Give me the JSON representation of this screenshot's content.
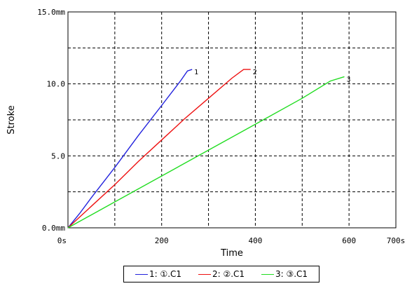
{
  "chart_data": {
    "type": "line",
    "xlabel": "Time",
    "ylabel": "Stroke",
    "xlim": [
      0,
      700
    ],
    "ylim": [
      0,
      15
    ],
    "x_ticks": [
      {
        "value": 0,
        "label": "0s"
      },
      {
        "value": 200,
        "label": "200"
      },
      {
        "value": 400,
        "label": "400"
      },
      {
        "value": 600,
        "label": "600"
      },
      {
        "value": 700,
        "label": "700s"
      }
    ],
    "y_ticks": [
      {
        "value": 0,
        "label": "0.0mm"
      },
      {
        "value": 5,
        "label": "5.0"
      },
      {
        "value": 10,
        "label": "10.0"
      },
      {
        "value": 15,
        "label": "15.0mm"
      }
    ],
    "grid": true,
    "legend_position": "bottom",
    "series": [
      {
        "name": "1: ①.C1",
        "end_label": "1",
        "color": "#2222dd",
        "x": [
          0,
          25,
          50,
          100,
          150,
          200,
          240,
          255,
          265
        ],
        "y": [
          0,
          1.0,
          2.1,
          4.2,
          6.4,
          8.5,
          10.2,
          10.9,
          11.0
        ]
      },
      {
        "name": "2: ②.C1",
        "end_label": "2",
        "color": "#ee1111",
        "x": [
          0,
          50,
          100,
          150,
          200,
          250,
          300,
          350,
          375,
          390
        ],
        "y": [
          0,
          1.5,
          3.0,
          4.6,
          6.1,
          7.6,
          9.0,
          10.4,
          11.0,
          11.0
        ]
      },
      {
        "name": "3: ③.C1",
        "end_label": "3",
        "color": "#22dd22",
        "x": [
          0,
          100,
          200,
          300,
          400,
          500,
          560,
          590
        ],
        "y": [
          0,
          1.8,
          3.6,
          5.4,
          7.2,
          9.0,
          10.2,
          10.5
        ]
      }
    ]
  }
}
